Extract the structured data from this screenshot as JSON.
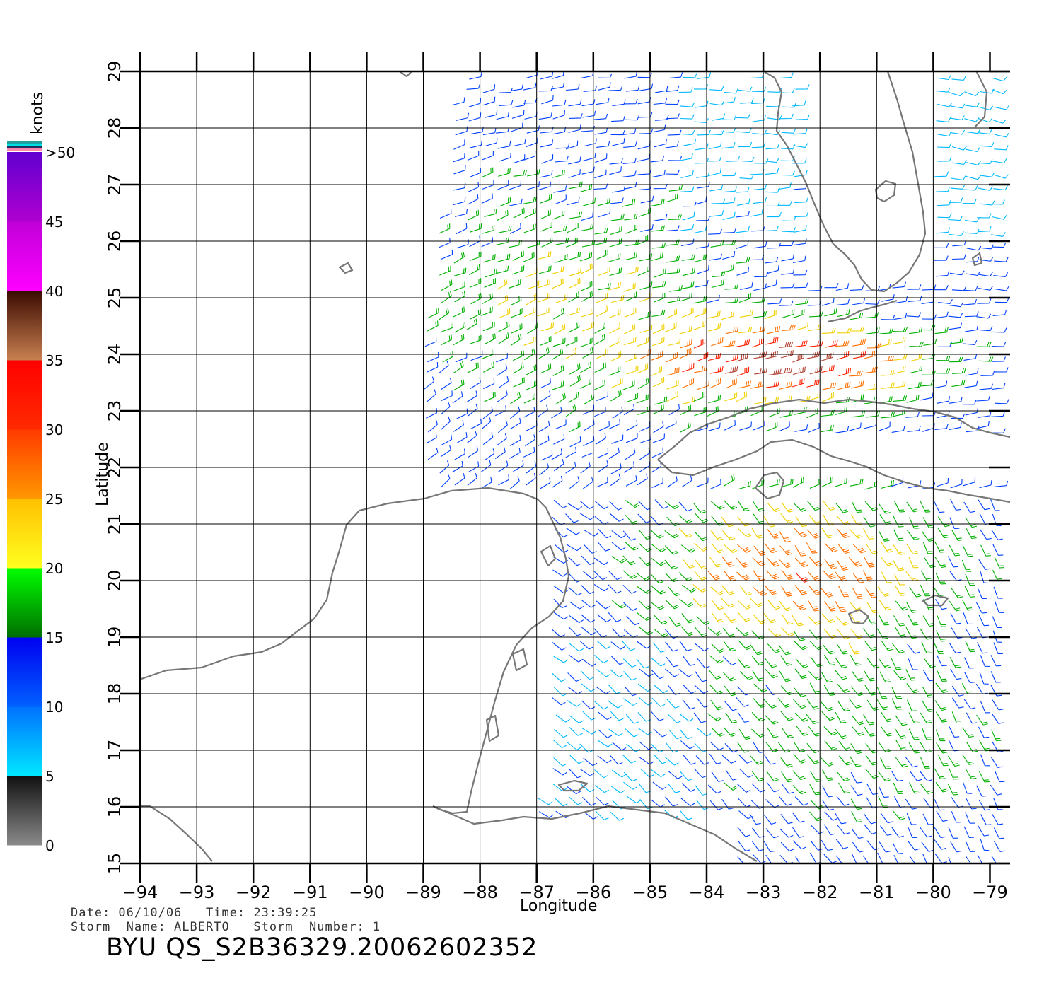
{
  "map": {
    "lon_ticks": [
      "−94",
      "−93",
      "−92",
      "−91",
      "−90",
      "−89",
      "−88",
      "−87",
      "−86",
      "−85",
      "−84",
      "−83",
      "−82",
      "−81",
      "−80",
      "−79"
    ],
    "lat_ticks": [
      "15",
      "16",
      "17",
      "18",
      "19",
      "20",
      "21",
      "22",
      "23",
      "24",
      "25",
      "26",
      "27",
      "28",
      "29"
    ],
    "lon_range": [
      -94,
      -78.6
    ],
    "lat_range": [
      15,
      29
    ],
    "xlabel": "Longitude",
    "ylabel": "Latitude",
    "grid": true,
    "land_outline_color": "#777777"
  },
  "colorbar": {
    "unit": "knots",
    "labels": [
      ">50",
      "45",
      "40",
      "35",
      "30",
      "25",
      "20",
      "15",
      "10",
      "5",
      "0"
    ],
    "bands": [
      {
        "range": [
          0,
          5
        ],
        "colors": [
          "#8a8a8a",
          "#101010"
        ]
      },
      {
        "range": [
          5,
          10
        ],
        "colors": [
          "#00e8ff",
          "#0070ff"
        ]
      },
      {
        "range": [
          10,
          15
        ],
        "colors": [
          "#0060ff",
          "#0000f0"
        ]
      },
      {
        "range": [
          15,
          20
        ],
        "colors": [
          "#006e00",
          "#00ff00"
        ]
      },
      {
        "range": [
          20,
          25
        ],
        "colors": [
          "#ffff20",
          "#ffc000"
        ]
      },
      {
        "range": [
          25,
          30
        ],
        "colors": [
          "#ff9800",
          "#ff3a00"
        ]
      },
      {
        "range": [
          30,
          35
        ],
        "colors": [
          "#ff2a00",
          "#ff0000"
        ]
      },
      {
        "range": [
          35,
          40
        ],
        "colors": [
          "#c88050",
          "#3a0a00"
        ]
      },
      {
        "range": [
          40,
          45
        ],
        "colors": [
          "#ff00ff",
          "#c000d8"
        ]
      },
      {
        "range": [
          45,
          50
        ],
        "colors": [
          "#b000d0",
          "#6000d0"
        ]
      }
    ]
  },
  "wind_field": {
    "description_bins": "knots",
    "speed_colors": [
      {
        "max": 5,
        "color": "#404040"
      },
      {
        "max": 10,
        "color": "#00b8ff"
      },
      {
        "max": 15,
        "color": "#0040ff"
      },
      {
        "max": 20,
        "color": "#00b000"
      },
      {
        "max": 25,
        "color": "#f0d000"
      },
      {
        "max": 30,
        "color": "#ff7000"
      },
      {
        "max": 35,
        "color": "#ff2000"
      },
      {
        "max": 40,
        "color": "#b04030"
      },
      {
        "max": 45,
        "color": "#c000e0"
      },
      {
        "max": 99,
        "color": "#6000d0"
      }
    ]
  },
  "info": {
    "date_line": "Date: 06/10/06   Time: 23:39:25",
    "storm_line": "Storm  Name: ALBERTO   Storm  Number: 1",
    "file_id": "BYU  QS_S2B36329.20062602352"
  }
}
